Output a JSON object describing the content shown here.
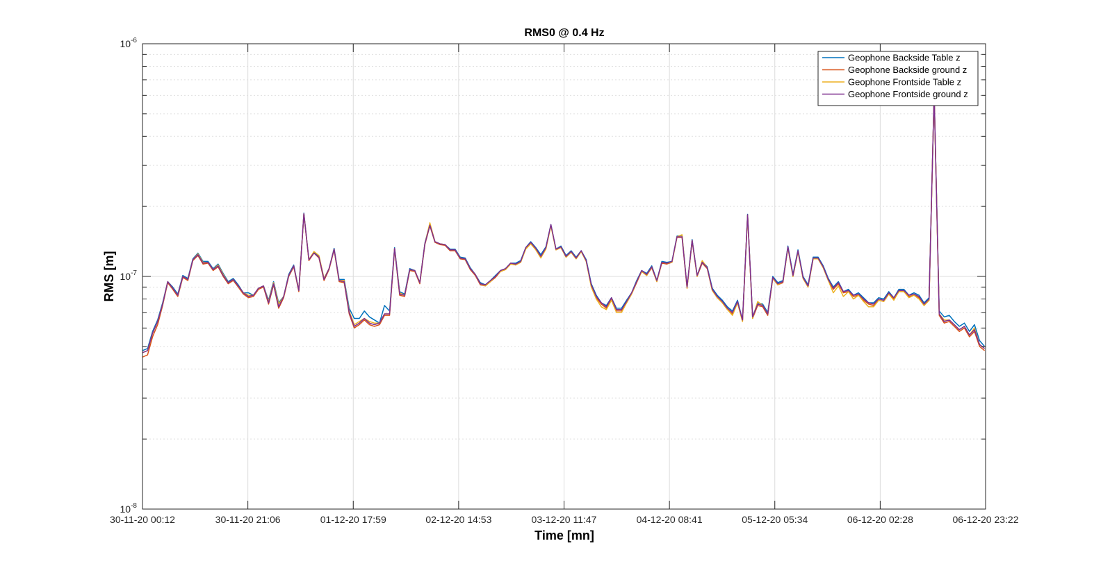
{
  "chart_data": {
    "type": "line",
    "title": "RMS0 @ 0.4 Hz",
    "xlabel": "Time [mn]",
    "ylabel": "RMS [m]",
    "yscale": "log",
    "ylim": [
      1e-08,
      1e-06
    ],
    "ytick_labels": [
      {
        "base": "10",
        "exp": "-8"
      },
      {
        "base": "10",
        "exp": "-7"
      },
      {
        "base": "10",
        "exp": "-6"
      }
    ],
    "x_tick_labels": [
      "30-11-20 00:12",
      "30-11-20 21:06",
      "01-12-20 17:59",
      "02-12-20 14:53",
      "03-12-20 11:47",
      "04-12-20 08:41",
      "05-12-20 05:34",
      "06-12-20 02:28",
      "06-12-20 23:22"
    ],
    "x_tick_hours": [
      0,
      20.9,
      41.8,
      62.7,
      83.6,
      104.5,
      125.4,
      146.3,
      167.2
    ],
    "xlim_hours": [
      0,
      167.2
    ],
    "grid": true,
    "legend_position": "top-right",
    "x_hours": [
      0,
      1,
      2,
      3,
      4,
      5,
      6,
      7,
      8,
      9,
      10,
      11,
      12,
      13,
      14,
      15,
      16,
      17,
      18,
      19,
      20,
      21,
      22,
      23,
      24,
      25,
      26,
      27,
      28,
      29,
      30,
      31,
      32,
      33,
      34,
      35,
      36,
      37,
      38,
      39,
      40,
      41,
      42,
      43,
      44,
      45,
      46,
      47,
      48,
      49,
      50,
      51,
      52,
      53,
      54,
      55,
      56,
      57,
      58,
      59,
      60,
      61,
      62,
      63,
      64,
      65,
      66,
      67,
      68,
      69,
      70,
      71,
      72,
      73,
      74,
      75,
      76,
      77,
      78,
      79,
      80,
      81,
      82,
      83,
      84,
      85,
      86,
      87,
      88,
      89,
      90,
      91,
      92,
      93,
      94,
      95,
      96,
      97,
      98,
      99,
      100,
      101,
      102,
      103,
      104,
      105,
      106,
      107,
      108,
      109,
      110,
      111,
      112,
      113,
      114,
      115,
      116,
      117,
      118,
      119,
      120,
      121,
      122,
      123,
      124,
      125,
      126,
      127,
      128,
      129,
      130,
      131,
      132,
      133,
      134,
      135,
      136,
      137,
      138,
      139,
      140,
      141,
      142,
      143,
      144,
      145,
      146,
      147,
      148,
      149,
      150,
      151,
      152,
      153,
      154,
      155,
      156,
      157,
      158,
      159,
      160,
      161,
      162,
      163,
      164,
      165,
      166,
      167
    ],
    "series": [
      {
        "name": "Geophone Backside Table z",
        "color": "#0072BD",
        "values": [
          4.8e-08,
          4.9e-08,
          5.8e-08,
          6.5e-08,
          7.7e-08,
          9.5e-08,
          9e-08,
          8.4e-08,
          1.01e-07,
          9.8e-08,
          1.19e-07,
          1.26e-07,
          1.16e-07,
          1.16e-07,
          1.08e-07,
          1.13e-07,
          1.03e-07,
          9.5e-08,
          9.8e-08,
          9.2e-08,
          8.5e-08,
          8.5e-08,
          8.3e-08,
          8.9e-08,
          9.1e-08,
          7.9e-08,
          9.5e-08,
          7.7e-08,
          8.2e-08,
          1.02e-07,
          1.12e-07,
          8.7e-08,
          1.87e-07,
          1.18e-07,
          1.27e-07,
          1.22e-07,
          9.8e-08,
          1.08e-07,
          1.32e-07,
          9.7e-08,
          9.7e-08,
          7.3e-08,
          6.6e-08,
          6.6e-08,
          7.1e-08,
          6.7e-08,
          6.5e-08,
          6.3e-08,
          7.5e-08,
          7.1e-08,
          1.33e-07,
          8.6e-08,
          8.4e-08,
          1.08e-07,
          1.06e-07,
          9.4e-08,
          1.39e-07,
          1.68e-07,
          1.41e-07,
          1.38e-07,
          1.37e-07,
          1.31e-07,
          1.31e-07,
          1.21e-07,
          1.2e-07,
          1.09e-07,
          1.02e-07,
          9.4e-08,
          9.2e-08,
          9.6e-08,
          1.01e-07,
          1.06e-07,
          1.08e-07,
          1.14e-07,
          1.14e-07,
          1.17e-07,
          1.33e-07,
          1.41e-07,
          1.33e-07,
          1.24e-07,
          1.34e-07,
          1.67e-07,
          1.31e-07,
          1.35e-07,
          1.23e-07,
          1.29e-07,
          1.21e-07,
          1.29e-07,
          1.18e-07,
          9.3e-08,
          8.3e-08,
          7.7e-08,
          7.5e-08,
          8.1e-08,
          7.3e-08,
          7.3e-08,
          7.9e-08,
          8.5e-08,
          9.6e-08,
          1.06e-07,
          1.03e-07,
          1.11e-07,
          9.6e-08,
          1.16e-07,
          1.15e-07,
          1.16e-07,
          1.49e-07,
          1.5e-07,
          9e-08,
          1.44e-07,
          1.01e-07,
          1.16e-07,
          1.1e-07,
          8.9e-08,
          8.3e-08,
          7.9e-08,
          7.4e-08,
          7.1e-08,
          7.9e-08,
          6.5e-08,
          1.85e-07,
          6.7e-08,
          7.7e-08,
          7.6e-08,
          7e-08,
          1e-07,
          9.4e-08,
          9.6e-08,
          1.35e-07,
          1.02e-07,
          1.3e-07,
          1e-07,
          9.2e-08,
          1.21e-07,
          1.21e-07,
          1.11e-07,
          9.8e-08,
          9e-08,
          9.5e-08,
          8.6e-08,
          8.8e-08,
          8.3e-08,
          8.5e-08,
          8.1e-08,
          7.7e-08,
          7.7e-08,
          8.1e-08,
          8e-08,
          8.6e-08,
          8.1e-08,
          8.8e-08,
          8.8e-08,
          8.3e-08,
          8.5e-08,
          8.3e-08,
          7.7e-08,
          8.1e-08,
          6.15e-07,
          7.1e-08,
          6.7e-08,
          6.8e-08,
          6.4e-08,
          6.1e-08,
          6.3e-08,
          5.8e-08,
          6.2e-08,
          5.3e-08,
          5e-08
        ]
      },
      {
        "name": "Geophone Backside ground z",
        "color": "#D95319",
        "values": [
          4.5e-08,
          4.6e-08,
          5.5e-08,
          6.2e-08,
          7.5e-08,
          9.4e-08,
          8.8e-08,
          8.2e-08,
          9.9e-08,
          9.6e-08,
          1.17e-07,
          1.23e-07,
          1.13e-07,
          1.14e-07,
          1.06e-07,
          1.1e-07,
          1e-07,
          9.3e-08,
          9.6e-08,
          9e-08,
          8.4e-08,
          8.1e-08,
          8.2e-08,
          8.8e-08,
          9e-08,
          7.6e-08,
          9.2e-08,
          7.3e-08,
          8.1e-08,
          1e-07,
          1.1e-07,
          8.6e-08,
          1.85e-07,
          1.17e-07,
          1.26e-07,
          1.2e-07,
          9.6e-08,
          1.07e-07,
          1.3e-07,
          9.5e-08,
          9.4e-08,
          6.9e-08,
          6e-08,
          6.2e-08,
          6.5e-08,
          6.2e-08,
          6.1e-08,
          6.2e-08,
          6.8e-08,
          6.8e-08,
          1.31e-07,
          8.3e-08,
          8.2e-08,
          1.06e-07,
          1.05e-07,
          9.3e-08,
          1.37e-07,
          1.65e-07,
          1.4e-07,
          1.37e-07,
          1.36e-07,
          1.29e-07,
          1.29e-07,
          1.19e-07,
          1.18e-07,
          1.07e-07,
          1.01e-07,
          9.2e-08,
          9.1e-08,
          9.5e-08,
          9.9e-08,
          1.05e-07,
          1.07e-07,
          1.13e-07,
          1.12e-07,
          1.15e-07,
          1.32e-07,
          1.39e-07,
          1.31e-07,
          1.21e-07,
          1.32e-07,
          1.66e-07,
          1.3e-07,
          1.33e-07,
          1.21e-07,
          1.27e-07,
          1.19e-07,
          1.28e-07,
          1.16e-07,
          9.1e-08,
          8.1e-08,
          7.6e-08,
          7.3e-08,
          8e-08,
          7.1e-08,
          7.1e-08,
          7.7e-08,
          8.4e-08,
          9.4e-08,
          1.05e-07,
          1.01e-07,
          1.09e-07,
          9.5e-08,
          1.14e-07,
          1.13e-07,
          1.15e-07,
          1.47e-07,
          1.47e-07,
          8.9e-08,
          1.42e-07,
          1e-07,
          1.14e-07,
          1.08e-07,
          8.7e-08,
          8.1e-08,
          7.7e-08,
          7.2e-08,
          6.9e-08,
          7.7e-08,
          6.4e-08,
          1.83e-07,
          6.6e-08,
          7.5e-08,
          7.4e-08,
          6.8e-08,
          9.8e-08,
          9.2e-08,
          9.4e-08,
          1.33e-07,
          1e-07,
          1.28e-07,
          9.8e-08,
          9e-08,
          1.19e-07,
          1.19e-07,
          1.09e-07,
          9.6e-08,
          8.8e-08,
          9.3e-08,
          8.5e-08,
          8.6e-08,
          8.2e-08,
          8.3e-08,
          7.9e-08,
          7.6e-08,
          7.5e-08,
          7.9e-08,
          7.8e-08,
          8.4e-08,
          8e-08,
          8.6e-08,
          8.6e-08,
          8.2e-08,
          8.3e-08,
          8.1e-08,
          7.5e-08,
          7.9e-08,
          6.1e-07,
          6.8e-08,
          6.3e-08,
          6.4e-08,
          6.1e-08,
          5.8e-08,
          6e-08,
          5.5e-08,
          5.8e-08,
          5e-08,
          4.8e-08
        ]
      },
      {
        "name": "Geophone Frontside Table z",
        "color": "#EDB120",
        "values": [
          4.7e-08,
          4.8e-08,
          5.7e-08,
          6.4e-08,
          7.6e-08,
          9.5e-08,
          8.9e-08,
          8.3e-08,
          1e-07,
          9.7e-08,
          1.18e-07,
          1.25e-07,
          1.15e-07,
          1.15e-07,
          1.07e-07,
          1.12e-07,
          1.02e-07,
          9.4e-08,
          9.7e-08,
          9.1e-08,
          8.5e-08,
          8.3e-08,
          8.3e-08,
          8.9e-08,
          9.1e-08,
          7.8e-08,
          9.4e-08,
          7.6e-08,
          8.2e-08,
          1.01e-07,
          1.11e-07,
          8.7e-08,
          1.86e-07,
          1.18e-07,
          1.28e-07,
          1.23e-07,
          9.8e-08,
          1.08e-07,
          1.31e-07,
          9.6e-08,
          9.6e-08,
          7.1e-08,
          6.2e-08,
          6.4e-08,
          6.6e-08,
          6.4e-08,
          6.3e-08,
          6.3e-08,
          6.9e-08,
          6.9e-08,
          1.32e-07,
          8.5e-08,
          8.3e-08,
          1.07e-07,
          1.06e-07,
          9.4e-08,
          1.38e-07,
          1.7e-07,
          1.41e-07,
          1.38e-07,
          1.37e-07,
          1.3e-07,
          1.3e-07,
          1.2e-07,
          1.19e-07,
          1.08e-07,
          1.02e-07,
          9.3e-08,
          9.1e-08,
          9.5e-08,
          1e-07,
          1.05e-07,
          1.07e-07,
          1.13e-07,
          1.12e-07,
          1.15e-07,
          1.31e-07,
          1.38e-07,
          1.3e-07,
          1.2e-07,
          1.31e-07,
          1.65e-07,
          1.3e-07,
          1.33e-07,
          1.21e-07,
          1.27e-07,
          1.19e-07,
          1.28e-07,
          1.16e-07,
          9e-08,
          8e-08,
          7.4e-08,
          7.2e-08,
          7.9e-08,
          7e-08,
          7e-08,
          7.7e-08,
          8.4e-08,
          9.5e-08,
          1.05e-07,
          1.01e-07,
          1.1e-07,
          9.5e-08,
          1.15e-07,
          1.14e-07,
          1.15e-07,
          1.48e-07,
          1.51e-07,
          8.9e-08,
          1.43e-07,
          1e-07,
          1.17e-07,
          1.09e-07,
          8.7e-08,
          8.1e-08,
          7.7e-08,
          7.2e-08,
          6.8e-08,
          7.7e-08,
          6.4e-08,
          1.84e-07,
          6.6e-08,
          7.8e-08,
          7.5e-08,
          6.9e-08,
          9.8e-08,
          9.2e-08,
          9.5e-08,
          1.33e-07,
          1e-07,
          1.28e-07,
          9.8e-08,
          9e-08,
          1.19e-07,
          1.19e-07,
          1.09e-07,
          9.6e-08,
          8.5e-08,
          9.1e-08,
          8.2e-08,
          8.6e-08,
          8e-08,
          8.3e-08,
          7.8e-08,
          7.4e-08,
          7.4e-08,
          7.9e-08,
          7.8e-08,
          8.4e-08,
          7.9e-08,
          8.6e-08,
          8.6e-08,
          8.1e-08,
          8.3e-08,
          8e-08,
          7.5e-08,
          7.9e-08,
          6.12e-07,
          6.9e-08,
          6.5e-08,
          6.5e-08,
          6.2e-08,
          5.9e-08,
          6.1e-08,
          5.6e-08,
          6e-08,
          5.1e-08,
          4.9e-08
        ]
      },
      {
        "name": "Geophone Frontside ground z",
        "color": "#7E2F8E",
        "values": [
          4.7e-08,
          4.8e-08,
          5.7e-08,
          6.4e-08,
          7.6e-08,
          9.5e-08,
          8.9e-08,
          8.3e-08,
          1e-07,
          9.7e-08,
          1.18e-07,
          1.24e-07,
          1.14e-07,
          1.15e-07,
          1.07e-07,
          1.11e-07,
          1.01e-07,
          9.4e-08,
          9.7e-08,
          9.1e-08,
          8.5e-08,
          8.2e-08,
          8.3e-08,
          8.9e-08,
          9.1e-08,
          7.7e-08,
          9.3e-08,
          7.4e-08,
          8.2e-08,
          1.01e-07,
          1.11e-07,
          8.7e-08,
          1.86e-07,
          1.18e-07,
          1.26e-07,
          1.21e-07,
          9.7e-08,
          1.08e-07,
          1.31e-07,
          9.6e-08,
          9.5e-08,
          7e-08,
          6.1e-08,
          6.3e-08,
          6.6e-08,
          6.3e-08,
          6.2e-08,
          6.3e-08,
          6.9e-08,
          6.9e-08,
          1.32e-07,
          8.4e-08,
          8.3e-08,
          1.07e-07,
          1.06e-07,
          9.4e-08,
          1.38e-07,
          1.66e-07,
          1.41e-07,
          1.38e-07,
          1.37e-07,
          1.3e-07,
          1.3e-07,
          1.2e-07,
          1.19e-07,
          1.08e-07,
          1.02e-07,
          9.3e-08,
          9.2e-08,
          9.6e-08,
          1e-07,
          1.06e-07,
          1.08e-07,
          1.14e-07,
          1.13e-07,
          1.16e-07,
          1.33e-07,
          1.4e-07,
          1.32e-07,
          1.22e-07,
          1.33e-07,
          1.67e-07,
          1.31e-07,
          1.34e-07,
          1.22e-07,
          1.28e-07,
          1.2e-07,
          1.29e-07,
          1.17e-07,
          9.2e-08,
          8.2e-08,
          7.7e-08,
          7.4e-08,
          8.1e-08,
          7.2e-08,
          7.2e-08,
          7.8e-08,
          8.5e-08,
          9.5e-08,
          1.06e-07,
          1.02e-07,
          1.1e-07,
          9.6e-08,
          1.15e-07,
          1.14e-07,
          1.16e-07,
          1.48e-07,
          1.48e-07,
          9e-08,
          1.43e-07,
          1.01e-07,
          1.15e-07,
          1.09e-07,
          8.8e-08,
          8.2e-08,
          7.8e-08,
          7.3e-08,
          7e-08,
          7.8e-08,
          6.5e-08,
          1.84e-07,
          6.7e-08,
          7.6e-08,
          7.5e-08,
          6.9e-08,
          9.9e-08,
          9.3e-08,
          9.5e-08,
          1.34e-07,
          1.01e-07,
          1.29e-07,
          9.9e-08,
          9.1e-08,
          1.2e-07,
          1.2e-07,
          1.1e-07,
          9.7e-08,
          8.9e-08,
          9.4e-08,
          8.6e-08,
          8.7e-08,
          8.3e-08,
          8.4e-08,
          8e-08,
          7.7e-08,
          7.6e-08,
          8e-08,
          7.9e-08,
          8.5e-08,
          8.1e-08,
          8.7e-08,
          8.7e-08,
          8.3e-08,
          8.4e-08,
          8.2e-08,
          7.6e-08,
          8e-08,
          6.15e-07,
          6.9e-08,
          6.4e-08,
          6.5e-08,
          6.2e-08,
          5.9e-08,
          6.1e-08,
          5.6e-08,
          5.9e-08,
          5.1e-08,
          4.9e-08
        ]
      }
    ]
  }
}
